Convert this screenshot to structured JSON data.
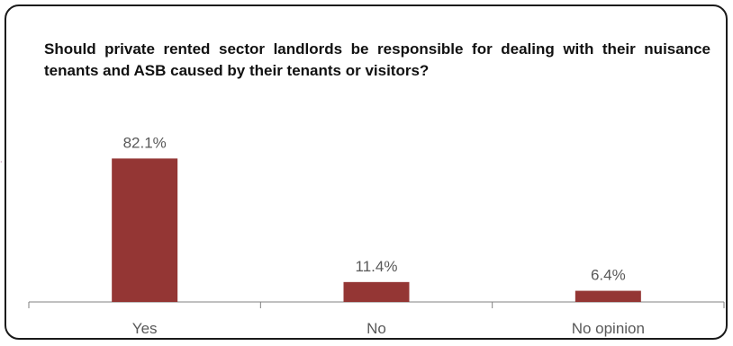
{
  "chart_data": {
    "type": "bar",
    "title": "Should private rented sector landlords be responsible for dealing  with their nuisance tenants and ASB caused by their tenants or visitors?",
    "categories": [
      "Yes",
      "No",
      "No opinion"
    ],
    "values": [
      82.1,
      11.4,
      6.4
    ],
    "data_labels": [
      "82.1%",
      "11.4%",
      "6.4%"
    ],
    "xlabel": "",
    "ylabel": "",
    "ylim": [
      0,
      100
    ],
    "grid": false,
    "legend": "none",
    "colors": {
      "bar": "#943634",
      "axis": "#808080",
      "label": "#595959",
      "border": "#1a1a1a"
    }
  }
}
